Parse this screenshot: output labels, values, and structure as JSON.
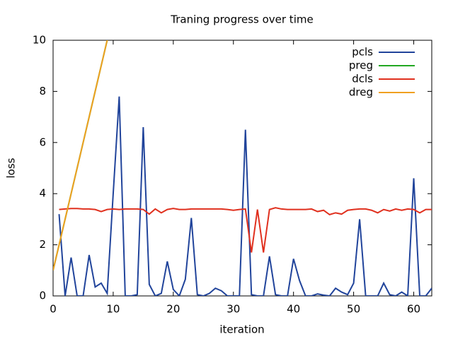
{
  "chart_data": {
    "type": "line",
    "title": "Traning progress over time",
    "x_label": "iteration",
    "y_label": "loss",
    "x": [
      0,
      1,
      2,
      3,
      4,
      5,
      6,
      7,
      8,
      9,
      10,
      11,
      12,
      13,
      14,
      15,
      16,
      17,
      18,
      19,
      20,
      21,
      22,
      23,
      24,
      25,
      26,
      27,
      28,
      29,
      30,
      31,
      32,
      33,
      34,
      35,
      36,
      37,
      38,
      39,
      40,
      41,
      42,
      43,
      44,
      45,
      46,
      47,
      48,
      49,
      50,
      51,
      52,
      53,
      54,
      55,
      56,
      57,
      58,
      59,
      60,
      61,
      62,
      63
    ],
    "series": [
      {
        "name": "pcls",
        "color": "#21449b",
        "values": [
          null,
          3.2,
          0,
          1.5,
          0,
          0,
          1.6,
          0.35,
          0.5,
          0.1,
          4.0,
          7.8,
          0,
          0,
          0.05,
          6.6,
          0.45,
          0,
          0.1,
          1.35,
          0.25,
          0,
          0.65,
          3.05,
          0.05,
          0,
          0.1,
          0.3,
          0.2,
          0,
          0,
          0,
          6.5,
          0.05,
          0,
          0,
          1.55,
          0.05,
          0,
          0,
          1.45,
          0.6,
          0,
          0,
          0.08,
          0.03,
          0,
          0.3,
          0.15,
          0.05,
          0.5,
          3.0,
          0,
          0,
          0,
          0.5,
          0.05,
          0,
          0.15,
          0,
          4.6,
          0,
          0,
          0.3
        ]
      },
      {
        "name": "preg",
        "color": "#22a822",
        "values": [
          1,
          2,
          3,
          4,
          5,
          6,
          7,
          8,
          9,
          10,
          11,
          null,
          null,
          null,
          null,
          null,
          null,
          null,
          null,
          null,
          null,
          null,
          null,
          null,
          null,
          null,
          null,
          null,
          null,
          null,
          null,
          null,
          null,
          null,
          null,
          null,
          null,
          null,
          null,
          null,
          null,
          null,
          null,
          null,
          null,
          null,
          null,
          null,
          null,
          null,
          null,
          null,
          null,
          null,
          null,
          null,
          null,
          null,
          null,
          null,
          null,
          null,
          null,
          null
        ]
      },
      {
        "name": "dcls",
        "color": "#e0301e",
        "values": [
          null,
          3.38,
          3.4,
          3.42,
          3.42,
          3.4,
          3.4,
          3.38,
          3.3,
          3.38,
          3.4,
          3.38,
          3.4,
          3.4,
          3.4,
          3.38,
          3.2,
          3.4,
          3.25,
          3.38,
          3.42,
          3.38,
          3.38,
          3.4,
          3.4,
          3.4,
          3.4,
          3.4,
          3.4,
          3.38,
          3.35,
          3.38,
          3.4,
          1.7,
          3.38,
          1.7,
          3.38,
          3.45,
          3.4,
          3.38,
          3.38,
          3.38,
          3.38,
          3.4,
          3.3,
          3.35,
          3.18,
          3.25,
          3.2,
          3.35,
          3.38,
          3.4,
          3.4,
          3.35,
          3.25,
          3.38,
          3.32,
          3.4,
          3.35,
          3.4,
          3.38,
          3.25,
          3.38,
          3.38
        ]
      },
      {
        "name": "dreg",
        "color": "#f0a020",
        "values": [
          1,
          2,
          3,
          4,
          5,
          6,
          7,
          8,
          9,
          10,
          11,
          null,
          null,
          null,
          null,
          null,
          null,
          null,
          null,
          null,
          null,
          null,
          null,
          null,
          null,
          null,
          null,
          null,
          null,
          null,
          null,
          null,
          null,
          null,
          null,
          null,
          null,
          null,
          null,
          null,
          null,
          null,
          null,
          null,
          null,
          null,
          null,
          null,
          null,
          null,
          null,
          null,
          null,
          null,
          null,
          null,
          null,
          null,
          null,
          null,
          null,
          null,
          null,
          null
        ]
      }
    ],
    "xlim": [
      0,
      63
    ],
    "xticks": [
      0,
      10,
      20,
      30,
      40,
      50,
      60
    ],
    "ylim": [
      0,
      10
    ],
    "yticks": [
      0,
      2,
      4,
      6,
      8,
      10
    ],
    "legend": "top-right"
  }
}
